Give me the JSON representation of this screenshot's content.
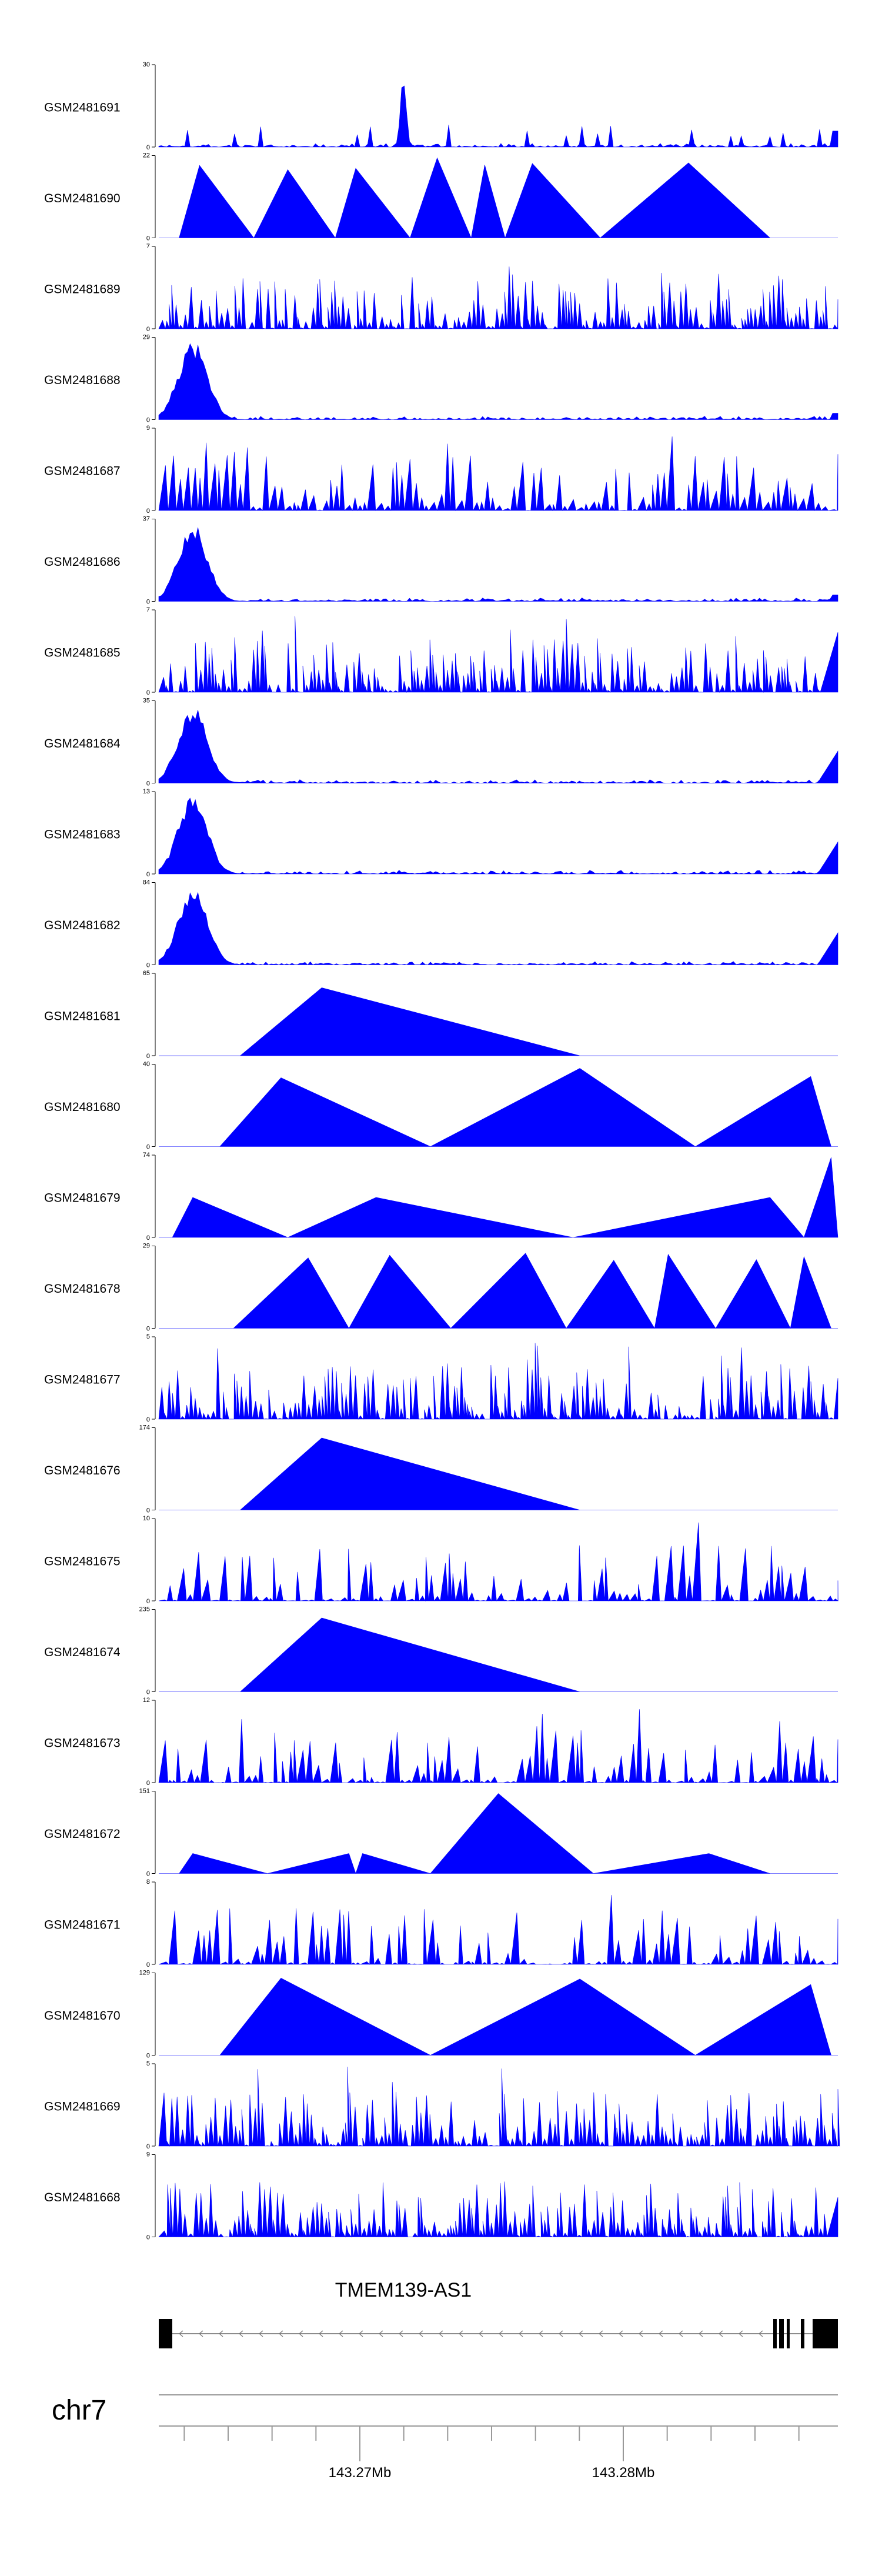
{
  "chart_data": {
    "type": "area",
    "title": "",
    "tracks": [
      {
        "name": "GSM2481691",
        "ymax": 30,
        "profile": "peak-right"
      },
      {
        "name": "GSM2481690",
        "ymax": 22,
        "profile": "sparse-triangles"
      },
      {
        "name": "GSM2481689",
        "ymax": 7,
        "profile": "dense-spiky"
      },
      {
        "name": "GSM2481688",
        "ymax": 29,
        "profile": "peak-left"
      },
      {
        "name": "GSM2481687",
        "ymax": 9,
        "profile": "spiky-left"
      },
      {
        "name": "GSM2481686",
        "ymax": 37,
        "profile": "peak-left"
      },
      {
        "name": "GSM2481685",
        "ymax": 7,
        "profile": "dense-spiky"
      },
      {
        "name": "GSM2481684",
        "ymax": 35,
        "profile": "peak-left-end"
      },
      {
        "name": "GSM2481683",
        "ymax": 13,
        "profile": "peak-left-end"
      },
      {
        "name": "GSM2481682",
        "ymax": 84,
        "profile": "peak-left-end"
      },
      {
        "name": "GSM2481681",
        "ymax": 65,
        "profile": "single-triangle"
      },
      {
        "name": "GSM2481680",
        "ymax": 40,
        "profile": "three-triangles"
      },
      {
        "name": "GSM2481679",
        "ymax": 74,
        "profile": "low-triangles"
      },
      {
        "name": "GSM2481678",
        "ymax": 29,
        "profile": "many-triangles"
      },
      {
        "name": "GSM2481677",
        "ymax": 5,
        "profile": "dense-spiky"
      },
      {
        "name": "GSM2481676",
        "ymax": 174,
        "profile": "single-triangle"
      },
      {
        "name": "GSM2481675",
        "ymax": 10,
        "profile": "sparse-spiky"
      },
      {
        "name": "GSM2481674",
        "ymax": 235,
        "profile": "single-triangle"
      },
      {
        "name": "GSM2481673",
        "ymax": 12,
        "profile": "sparse-spiky"
      },
      {
        "name": "GSM2481672",
        "ymax": 151,
        "profile": "mid-triangle"
      },
      {
        "name": "GSM2481671",
        "ymax": 8,
        "profile": "sparse-spiky"
      },
      {
        "name": "GSM2481670",
        "ymax": 129,
        "profile": "three-triangles"
      },
      {
        "name": "GSM2481669",
        "ymax": 5,
        "profile": "dense-spiky"
      },
      {
        "name": "GSM2481668",
        "ymax": 9,
        "profile": "dense-spiky"
      }
    ],
    "ymin": 0,
    "gene": {
      "name": "TMEM139-AS1",
      "strand": "-"
    },
    "chromosome": "chr7",
    "x_ticks": [
      {
        "value": 143.27,
        "label": "143.27Mb"
      },
      {
        "value": 143.28,
        "label": "143.28Mb"
      }
    ],
    "fill_color": "#0000ff",
    "grid": false
  }
}
